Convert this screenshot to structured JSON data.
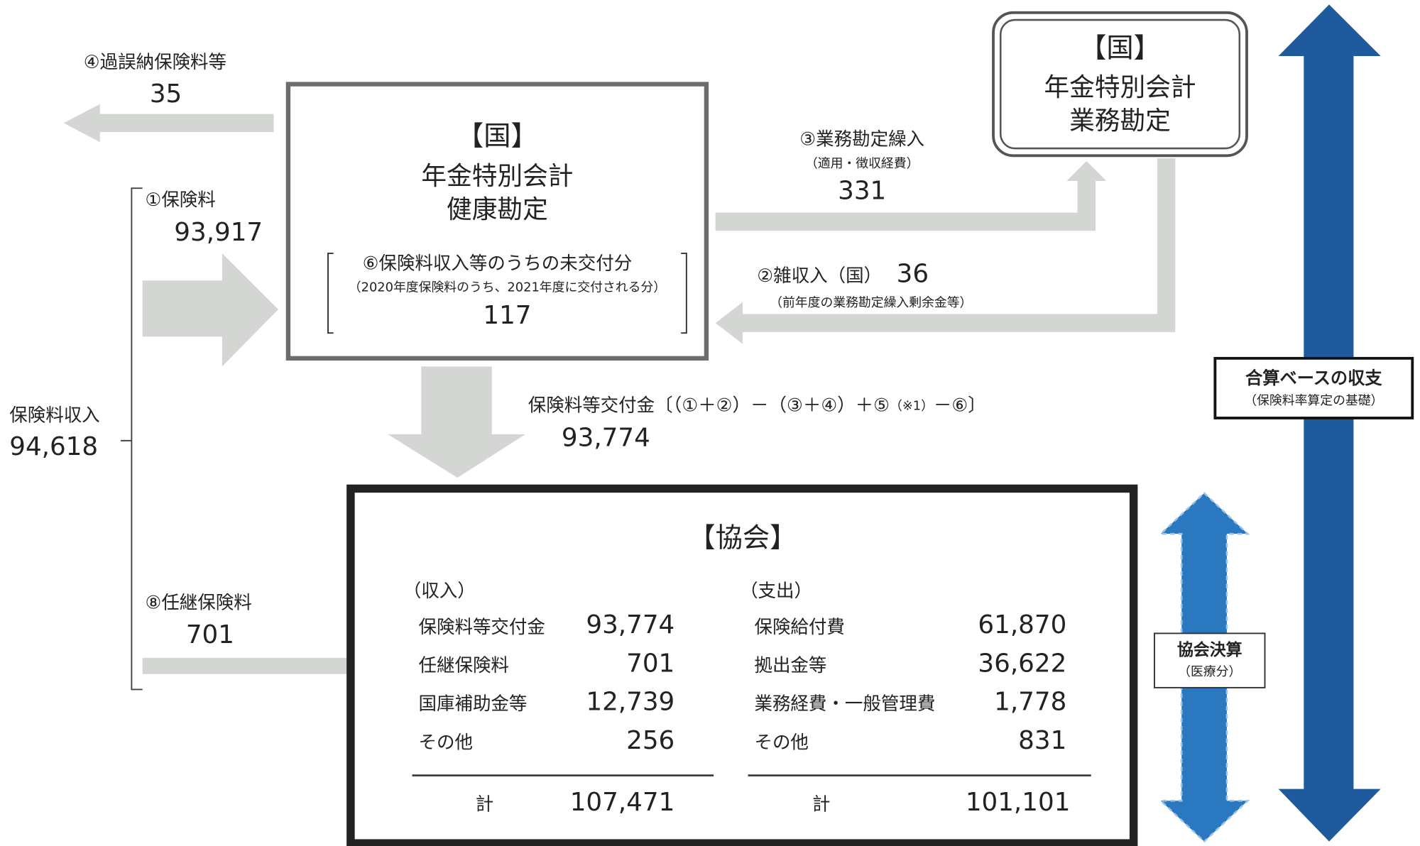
{
  "left_refund": {
    "label": "④過誤納保険料等",
    "value": "35"
  },
  "premium": {
    "label": "①保険料",
    "value": "93,917"
  },
  "premium_income": {
    "label": "保険料収入",
    "value": "94,618"
  },
  "continued_premium": {
    "label": "⑧任継保険料",
    "value": "701"
  },
  "kenko_account": {
    "bracket": "【国】",
    "line1": "年金特別会計",
    "line2": "健康勘定",
    "note_title": "⑥保険料収入等のうちの未交付分",
    "note_sub": "（2020年度保険料のうち、2021年度に交付される分）",
    "note_value": "117"
  },
  "gyomu_transfer": {
    "label": "③業務勘定繰入",
    "sub": "（適用・徴収経費）",
    "value": "331"
  },
  "misc_income": {
    "label": "②雑収入（国）",
    "value": "36",
    "sub": "（前年度の業務勘定繰入剰余金等）"
  },
  "gyomu_account": {
    "bracket": "【国】",
    "line1": "年金特別会計",
    "line2": "業務勘定"
  },
  "grant": {
    "formula": "保険料等交付金〔（①＋②）－（③＋④）＋⑤",
    "note": "（※1）",
    "formula_end": "－⑥〕",
    "value": "93,774"
  },
  "kyokai": {
    "title": "【協会】",
    "income": {
      "header": "（収入）",
      "rows": [
        [
          "保険料等交付金",
          "93,774"
        ],
        [
          "任継保険料",
          "701"
        ],
        [
          "国庫補助金等",
          "12,739"
        ],
        [
          "その他",
          "256"
        ]
      ],
      "total_label": "計",
      "total": "107,471"
    },
    "expense": {
      "header": "（支出）",
      "rows": [
        [
          "保険給付費",
          "61,870"
        ],
        [
          "拠出金等",
          "36,622"
        ],
        [
          "業務経費・一般管理費",
          "1,778"
        ],
        [
          "その他",
          "831"
        ]
      ],
      "total_label": "計",
      "total": "101,101"
    }
  },
  "combined_basis": {
    "title": "合算ベースの収支",
    "sub": "（保険料率算定の基礎）"
  },
  "kyokai_settlement": {
    "title": "協会決算",
    "sub": "（医療分）"
  }
}
